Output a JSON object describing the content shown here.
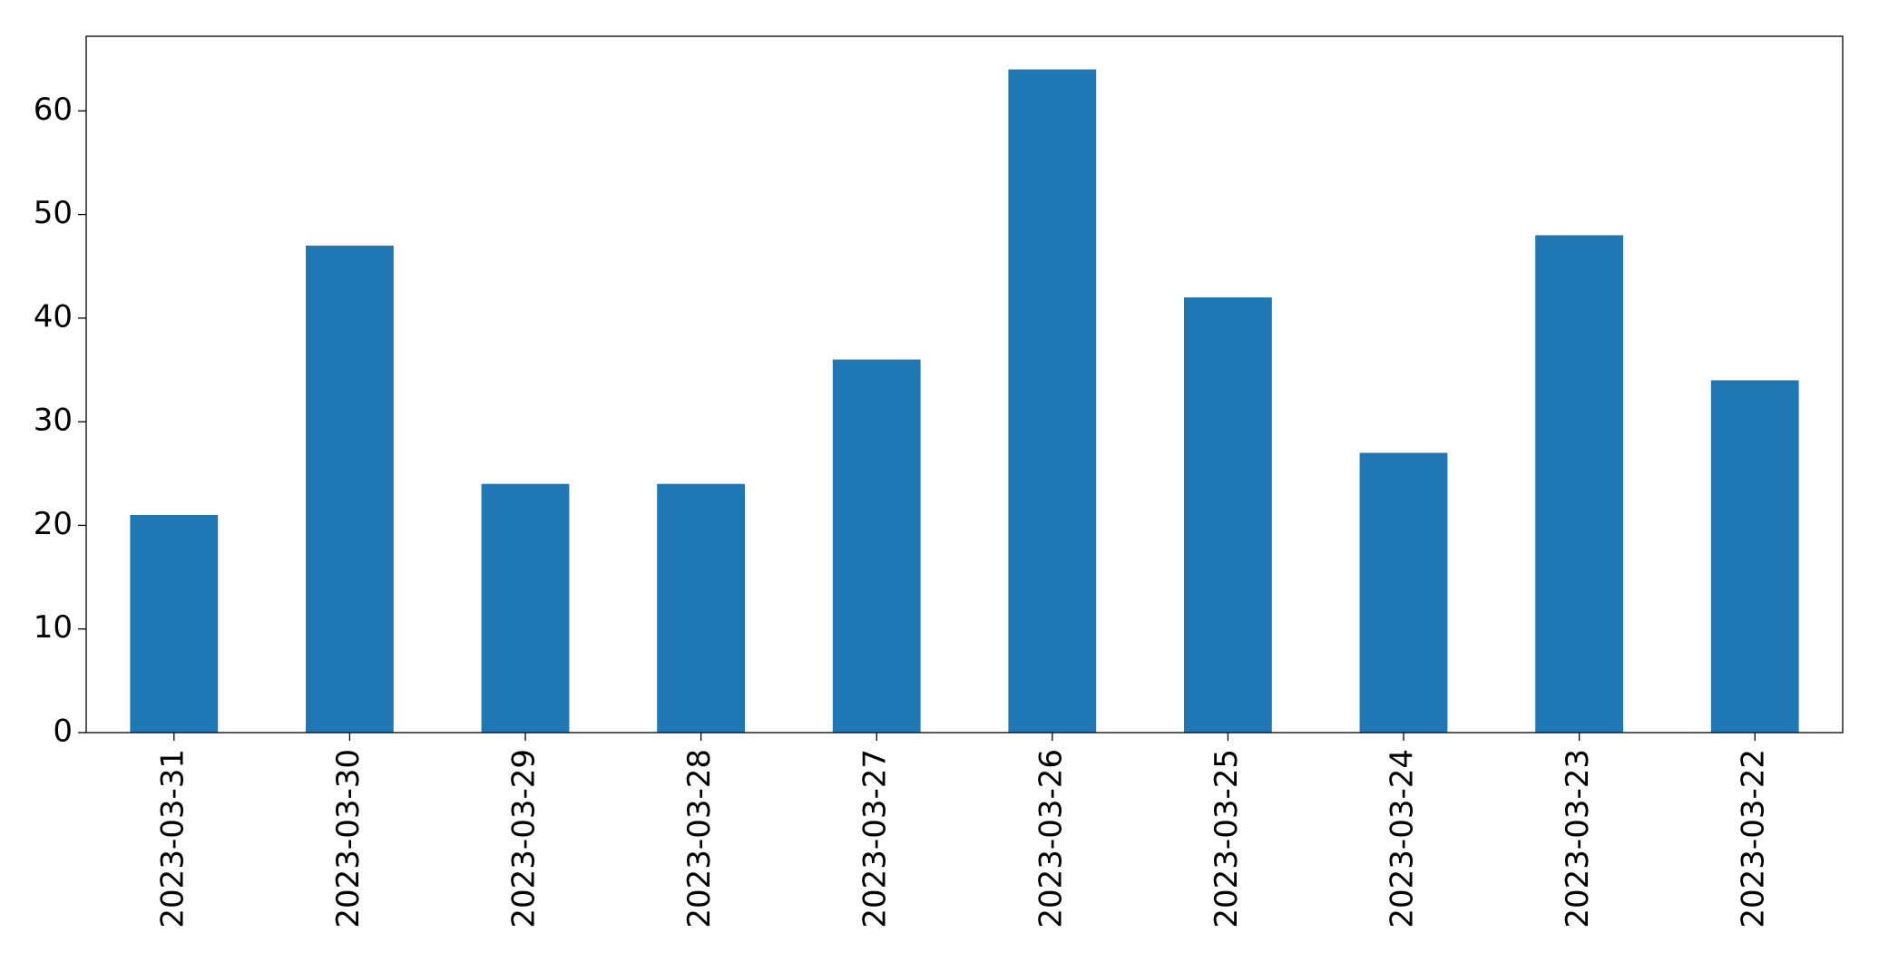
{
  "chart_data": {
    "type": "bar",
    "categories": [
      "2023-03-31",
      "2023-03-30",
      "2023-03-29",
      "2023-03-28",
      "2023-03-27",
      "2023-03-26",
      "2023-03-25",
      "2023-03-24",
      "2023-03-23",
      "2023-03-22"
    ],
    "values": [
      21,
      47,
      24,
      24,
      36,
      64,
      42,
      27,
      48,
      34
    ],
    "color": "#1f77b4",
    "ylim": [
      0,
      67.2
    ],
    "yticks": [
      0,
      10,
      20,
      30,
      40,
      50,
      60
    ],
    "grid": false
  }
}
